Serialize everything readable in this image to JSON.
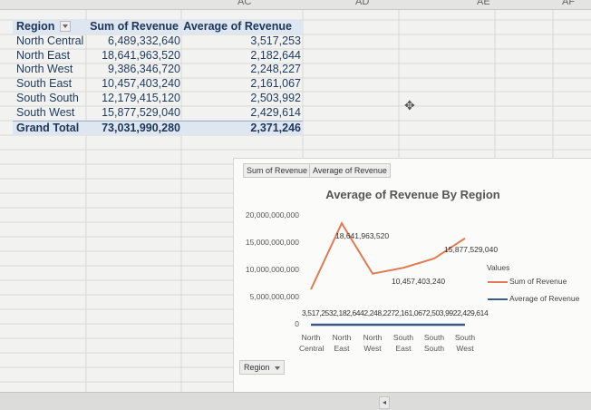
{
  "column_headers": [
    "AC",
    "AD",
    "AE",
    "AF"
  ],
  "pivot": {
    "headers": [
      "Region",
      "Sum of Revenue",
      "Average of Revenue"
    ],
    "rows": [
      {
        "region": "North Central",
        "sum": "6,489,332,640",
        "avg": "3,517,253"
      },
      {
        "region": "North East",
        "sum": "18,641,963,520",
        "avg": "2,182,644"
      },
      {
        "region": "North West",
        "sum": "9,386,346,720",
        "avg": "2,248,227"
      },
      {
        "region": "South East",
        "sum": "10,457,403,240",
        "avg": "2,161,067"
      },
      {
        "region": "South South",
        "sum": "12,179,415,120",
        "avg": "2,503,992"
      },
      {
        "region": "South West",
        "sum": "15,877,529,040",
        "avg": "2,429,614"
      }
    ],
    "total": {
      "label": "Grand Total",
      "sum": "73,031,990,280",
      "avg": "2,371,246"
    }
  },
  "chart_field_buttons": [
    "Sum of Revenue",
    "Average of Revenue"
  ],
  "region_button": "Region",
  "colors": {
    "sum_series": "#e07b54",
    "avg_series": "#3c5a8a",
    "pivot_header": "#dde6f1"
  },
  "chart_data": {
    "type": "line",
    "title": "Average of Revenue By Region",
    "categories": [
      [
        "North",
        "Central"
      ],
      [
        "North",
        "East"
      ],
      [
        "North",
        "West"
      ],
      [
        "South",
        "East"
      ],
      [
        "South",
        "South"
      ],
      [
        "South",
        "West"
      ]
    ],
    "ylim": [
      0,
      20000000000
    ],
    "yticks": [
      "0",
      "5,000,000,000",
      "10,000,000,000",
      "15,000,000,000",
      "20,000,000,000"
    ],
    "yticks_values": [
      0,
      5000000000,
      10000000000,
      15000000000,
      20000000000
    ],
    "grid": false,
    "legend": {
      "title": "Values",
      "position": "right"
    },
    "series": [
      {
        "name": "Sum of Revenue",
        "values": [
          6489332640,
          18641963520,
          9386346720,
          10457403240,
          12179415120,
          15877529040
        ]
      },
      {
        "name": "Average of Revenue",
        "values": [
          3517253,
          2182644,
          2248227,
          2161067,
          2503992,
          2429614
        ]
      }
    ],
    "data_labels": {
      "north_east": "18,641,963,520",
      "south_east": "10,457,403,240",
      "south_west": "15,877,529,040",
      "average_row": "3,517,2532,182,6442,248,2272,161,0672,503,9922,429,614"
    }
  }
}
